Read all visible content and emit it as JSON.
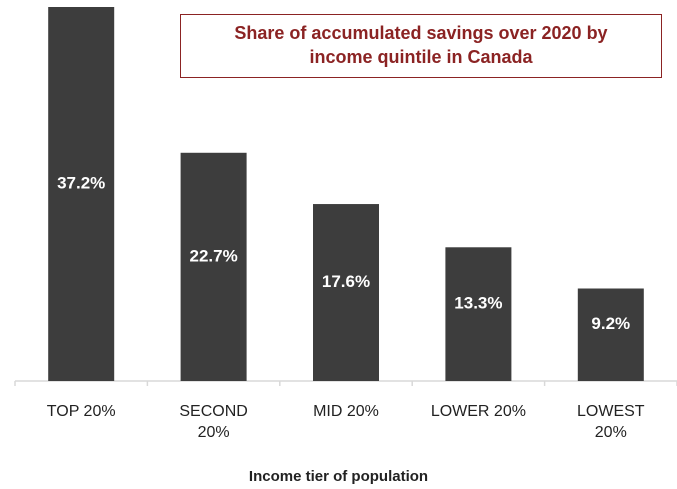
{
  "chart_data": {
    "type": "bar",
    "title": "Share of accumulated savings over 2020 by income quintile in Canada",
    "x_label": "Income tier of population",
    "categories": [
      "TOP 20%",
      "SECOND 20%",
      "MID 20%",
      "LOWER 20%",
      "LOWEST 20%"
    ],
    "values": [
      37.2,
      22.7,
      17.6,
      13.3,
      9.2
    ],
    "value_labels": [
      "37.2%",
      "22.7%",
      "17.6%",
      "13.3%",
      "9.2%"
    ],
    "color": "#3d3d3d",
    "ylim": [
      0,
      37.2
    ]
  }
}
